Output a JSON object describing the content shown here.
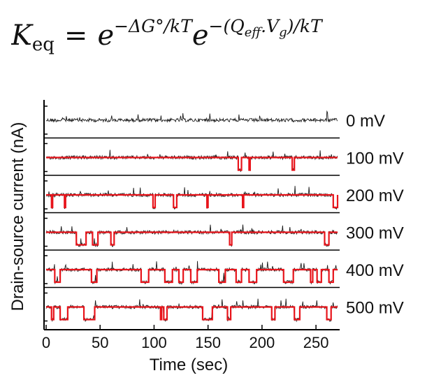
{
  "equation": {
    "lhs_base": "K",
    "lhs_sub": "eq",
    "equals": "=",
    "base1": "e",
    "exp1": "−ΔG°/kT",
    "base2": "e",
    "exp2": "−(Q",
    "exp2_sub": "eff",
    "exp2_rest": ".V",
    "exp2_sub2": "g",
    "exp2_tail": ")/kT"
  },
  "chart_data": {
    "type": "line",
    "xlabel": "Time (sec)",
    "ylabel": "Drain-source current (nA)",
    "xlim": [
      0,
      270
    ],
    "xticks": [
      "0",
      "50",
      "100",
      "150",
      "200",
      "250"
    ],
    "xtick_values": [
      0,
      50,
      100,
      150,
      200,
      250
    ],
    "colors": {
      "raw": "#1a1a1a",
      "fit": "#e8141b",
      "axis": "#000000"
    },
    "series": [
      {
        "name": "0 mV",
        "fit": false,
        "dwells": []
      },
      {
        "name": "100 mV",
        "fit": true,
        "dwells": [
          [
            178,
            181
          ],
          [
            188,
            189
          ],
          [
            228,
            230
          ]
        ]
      },
      {
        "name": "200 mV",
        "fit": true,
        "dwells": [
          [
            5,
            6
          ],
          [
            17,
            18
          ],
          [
            99,
            101
          ],
          [
            118,
            121
          ],
          [
            149,
            150
          ],
          [
            182,
            183
          ],
          [
            266,
            271
          ]
        ]
      },
      {
        "name": "300 mV",
        "fit": true,
        "dwells": [
          [
            28,
            37
          ],
          [
            43,
            48
          ],
          [
            60,
            63
          ],
          [
            170,
            172
          ],
          [
            258,
            262
          ]
        ]
      },
      {
        "name": "400 mV",
        "fit": true,
        "dwells": [
          [
            8,
            13
          ],
          [
            42,
            47
          ],
          [
            88,
            95
          ],
          [
            110,
            117
          ],
          [
            123,
            127
          ],
          [
            134,
            140
          ],
          [
            160,
            166
          ],
          [
            176,
            181
          ],
          [
            188,
            195
          ],
          [
            220,
            229
          ],
          [
            245,
            247
          ],
          [
            251,
            255
          ],
          [
            262,
            266
          ]
        ]
      },
      {
        "name": "500 mV",
        "fit": true,
        "dwells": [
          [
            5,
            7
          ],
          [
            13,
            20
          ],
          [
            35,
            45
          ],
          [
            106,
            107
          ],
          [
            109,
            112
          ],
          [
            145,
            154
          ],
          [
            168,
            171
          ],
          [
            209,
            212
          ],
          [
            230,
            235
          ],
          [
            260,
            264
          ]
        ]
      }
    ]
  }
}
